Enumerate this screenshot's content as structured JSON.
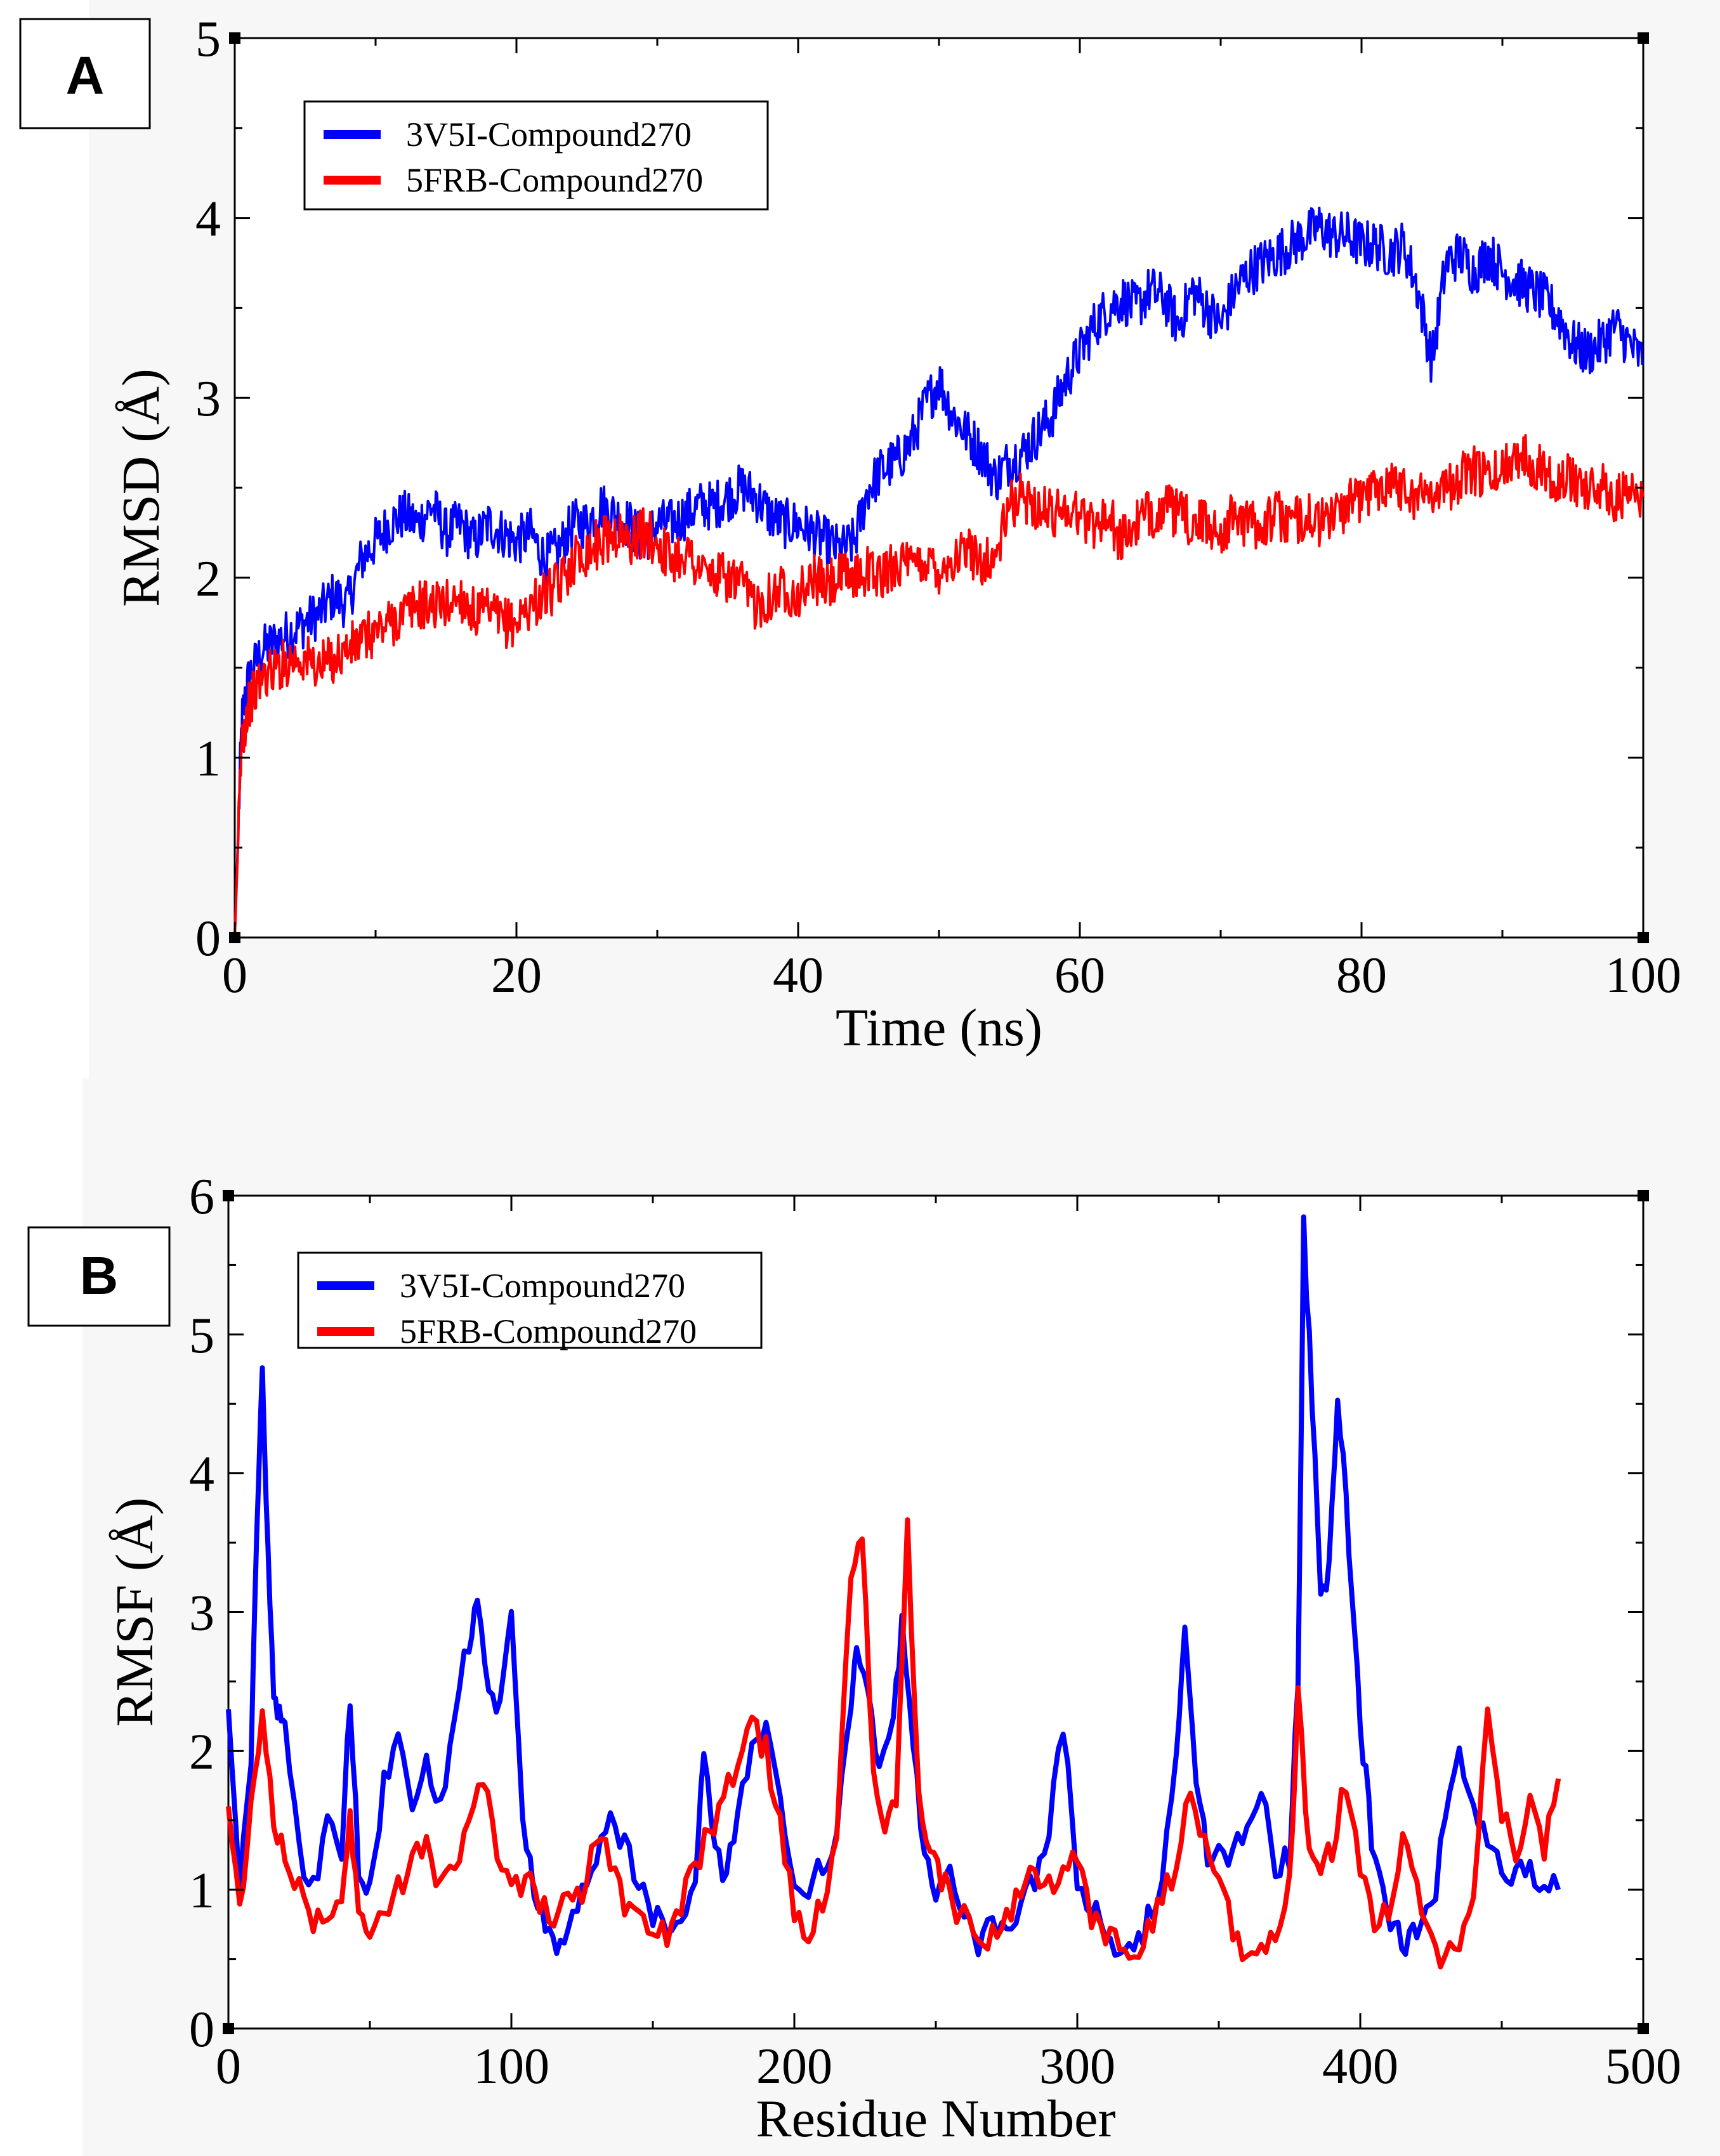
{
  "panels": [
    {
      "label": "A",
      "xlabel": "Time (ns)",
      "ylabel": "RMSD (Å)"
    },
    {
      "label": "B",
      "xlabel": "Residue Number",
      "ylabel": "RMSF (Å)"
    }
  ],
  "chart_data": [
    {
      "type": "line",
      "title": "",
      "xlabel": "Time (ns)",
      "ylabel": "RMSD (Å)",
      "xlim": [
        0,
        100
      ],
      "ylim": [
        0,
        5
      ],
      "xticks": [
        0,
        20,
        40,
        60,
        80,
        100
      ],
      "yticks": [
        0,
        1,
        2,
        3,
        4,
        5
      ],
      "legend_position": "top-left",
      "series": [
        {
          "name": "3V5I-Compound270",
          "color": "#0000ff",
          "x": [
            0,
            0.5,
            1,
            2,
            3,
            4,
            5,
            6,
            7,
            8,
            9,
            10,
            11,
            12,
            13,
            14,
            15,
            16,
            17,
            18,
            19,
            20,
            21,
            22,
            23,
            24,
            25,
            26,
            27,
            28,
            29,
            30,
            31,
            32,
            33,
            34,
            35,
            36,
            37,
            38,
            39,
            40,
            41,
            42,
            43,
            44,
            45,
            46,
            47,
            48,
            49,
            50,
            51,
            52,
            53,
            54,
            55,
            56,
            57,
            58,
            59,
            60,
            61,
            62,
            63,
            64,
            65,
            66,
            67,
            68,
            69,
            70,
            71,
            72,
            73,
            74,
            75,
            76,
            77,
            78,
            79,
            80,
            81,
            82,
            83,
            84,
            85,
            86,
            87,
            88,
            89,
            90,
            91,
            92,
            93,
            94,
            95,
            96,
            97,
            98,
            99,
            100
          ],
          "values": [
            0,
            1.2,
            1.45,
            1.6,
            1.65,
            1.7,
            1.75,
            1.8,
            1.9,
            1.85,
            2.1,
            2.2,
            2.3,
            2.35,
            2.3,
            2.4,
            2.25,
            2.3,
            2.2,
            2.3,
            2.25,
            2.2,
            2.25,
            2.1,
            2.15,
            2.3,
            2.3,
            2.4,
            2.35,
            2.3,
            2.2,
            2.3,
            2.3,
            2.35,
            2.4,
            2.4,
            2.45,
            2.5,
            2.45,
            2.35,
            2.3,
            2.3,
            2.25,
            2.2,
            2.15,
            2.2,
            2.5,
            2.6,
            2.65,
            2.75,
            2.95,
            3.1,
            2.9,
            2.8,
            2.7,
            2.55,
            2.65,
            2.7,
            2.8,
            2.9,
            3.1,
            3.25,
            3.4,
            3.5,
            3.55,
            3.5,
            3.6,
            3.55,
            3.4,
            3.6,
            3.5,
            3.4,
            3.6,
            3.7,
            3.75,
            3.8,
            3.85,
            3.9,
            3.95,
            3.9,
            3.9,
            3.85,
            3.85,
            3.8,
            3.85,
            3.6,
            3.2,
            3.75,
            3.8,
            3.7,
            3.8,
            3.7,
            3.65,
            3.6,
            3.55,
            3.45,
            3.3,
            3.25,
            3.3,
            3.4,
            3.3,
            3.2
          ]
        },
        {
          "name": "5FRB-Compound270",
          "color": "#ff0000",
          "x": [
            0,
            0.5,
            1,
            2,
            3,
            4,
            5,
            6,
            7,
            8,
            9,
            10,
            11,
            12,
            13,
            14,
            15,
            16,
            17,
            18,
            19,
            20,
            21,
            22,
            23,
            24,
            25,
            26,
            27,
            28,
            29,
            30,
            31,
            32,
            33,
            34,
            35,
            36,
            37,
            38,
            39,
            40,
            41,
            42,
            43,
            44,
            45,
            46,
            47,
            48,
            49,
            50,
            51,
            52,
            53,
            54,
            55,
            56,
            57,
            58,
            59,
            60,
            61,
            62,
            63,
            64,
            65,
            66,
            67,
            68,
            69,
            70,
            71,
            72,
            73,
            74,
            75,
            76,
            77,
            78,
            79,
            80,
            81,
            82,
            83,
            84,
            85,
            86,
            87,
            88,
            89,
            90,
            91,
            92,
            93,
            94,
            95,
            96,
            97,
            98,
            99,
            100
          ],
          "values": [
            0,
            1.1,
            1.3,
            1.45,
            1.5,
            1.55,
            1.55,
            1.5,
            1.55,
            1.6,
            1.65,
            1.7,
            1.75,
            1.8,
            1.85,
            1.85,
            1.85,
            1.9,
            1.8,
            1.8,
            1.75,
            1.75,
            1.85,
            1.9,
            1.95,
            2.1,
            2.15,
            2.2,
            2.25,
            2.2,
            2.25,
            2.2,
            2.1,
            2.15,
            2.05,
            2.0,
            2.0,
            1.95,
            1.85,
            1.9,
            1.95,
            1.9,
            2.0,
            1.95,
            2.0,
            2.0,
            2.05,
            2.0,
            2.1,
            2.05,
            2.1,
            2.05,
            2.1,
            2.15,
            2.1,
            2.1,
            2.4,
            2.45,
            2.4,
            2.35,
            2.4,
            2.35,
            2.3,
            2.35,
            2.2,
            2.3,
            2.35,
            2.4,
            2.35,
            2.3,
            2.3,
            2.25,
            2.35,
            2.3,
            2.3,
            2.35,
            2.3,
            2.35,
            2.3,
            2.35,
            2.4,
            2.45,
            2.5,
            2.55,
            2.5,
            2.45,
            2.5,
            2.5,
            2.55,
            2.6,
            2.55,
            2.6,
            2.7,
            2.65,
            2.6,
            2.55,
            2.55,
            2.5,
            2.5,
            2.45,
            2.45,
            2.45
          ]
        }
      ]
    },
    {
      "type": "line",
      "title": "",
      "xlabel": "Residue Number",
      "ylabel": "RMSF (Å)",
      "xlim": [
        0,
        500
      ],
      "ylim": [
        0,
        6
      ],
      "xticks": [
        0,
        100,
        200,
        300,
        400,
        500
      ],
      "yticks": [
        0,
        1,
        2,
        3,
        4,
        5,
        6
      ],
      "legend_position": "top-left",
      "series": [
        {
          "name": "3V5I-Compound270",
          "color": "#0000ff",
          "x": [
            0,
            4,
            8,
            10,
            12,
            14,
            16,
            18,
            20,
            25,
            30,
            35,
            40,
            43,
            46,
            50,
            55,
            60,
            65,
            70,
            75,
            80,
            85,
            88,
            92,
            96,
            100,
            104,
            108,
            112,
            116,
            120,
            125,
            130,
            135,
            140,
            145,
            150,
            155,
            160,
            165,
            168,
            172,
            176,
            180,
            185,
            190,
            195,
            200,
            205,
            210,
            215,
            220,
            222,
            226,
            230,
            235,
            238,
            242,
            246,
            250,
            255,
            260,
            265,
            270,
            275,
            280,
            285,
            290,
            295,
            300,
            305,
            310,
            315,
            320,
            325,
            330,
            335,
            338,
            342,
            346,
            350,
            355,
            360,
            365,
            370,
            375,
            378,
            380,
            383,
            386,
            389,
            392,
            395,
            398,
            401,
            404,
            408,
            412,
            416,
            420,
            425,
            430,
            435,
            440,
            445,
            450,
            455,
            460,
            465,
            470
          ],
          "values": [
            2.3,
            1.0,
            2.0,
            3.5,
            4.7,
            3.5,
            2.4,
            2.3,
            2.2,
            1.3,
            1.0,
            1.5,
            1.3,
            2.4,
            1.2,
            1.0,
            1.8,
            2.1,
            1.5,
            1.9,
            1.6,
            2.3,
            2.8,
            3.1,
            2.5,
            2.3,
            3.0,
            1.5,
            1.0,
            0.7,
            0.5,
            0.8,
            1.0,
            1.2,
            1.5,
            1.3,
            1.1,
            0.8,
            0.7,
            0.8,
            1.1,
            2.0,
            1.3,
            1.1,
            1.6,
            2.0,
            2.1,
            1.6,
            1.1,
            1.0,
            1.2,
            1.4,
            2.3,
            2.8,
            2.4,
            1.8,
            2.2,
            2.9,
            2.0,
            1.2,
            1.0,
            1.1,
            0.8,
            0.6,
            0.8,
            0.7,
            0.9,
            1.1,
            1.4,
            2.2,
            1.1,
            0.9,
            0.7,
            0.6,
            0.5,
            0.8,
            1.1,
            2.0,
            2.9,
            1.8,
            1.2,
            1.4,
            1.2,
            1.5,
            1.8,
            1.2,
            1.2,
            2.5,
            5.8,
            4.5,
            3.2,
            3.3,
            4.6,
            3.8,
            2.8,
            2.0,
            1.4,
            1.0,
            0.7,
            0.6,
            0.7,
            0.8,
            1.5,
            2.0,
            1.6,
            1.4,
            1.2,
            1.1,
            1.1,
            1.0,
            1.0
          ]
        },
        {
          "name": "5FRB-Compound270",
          "color": "#ff0000",
          "x": [
            0,
            4,
            8,
            12,
            16,
            20,
            25,
            30,
            35,
            40,
            43,
            46,
            50,
            55,
            60,
            65,
            70,
            75,
            80,
            85,
            90,
            95,
            100,
            105,
            110,
            115,
            120,
            125,
            130,
            135,
            140,
            145,
            150,
            155,
            160,
            165,
            170,
            175,
            180,
            185,
            190,
            195,
            200,
            205,
            210,
            215,
            220,
            224,
            228,
            232,
            236,
            240,
            244,
            248,
            252,
            256,
            260,
            265,
            270,
            275,
            280,
            285,
            290,
            295,
            300,
            305,
            310,
            315,
            320,
            325,
            330,
            335,
            340,
            345,
            350,
            355,
            360,
            365,
            370,
            375,
            378,
            382,
            386,
            390,
            395,
            400,
            405,
            410,
            415,
            420,
            425,
            430,
            435,
            440,
            445,
            450,
            455,
            460,
            465,
            470
          ],
          "values": [
            1.6,
            0.8,
            1.6,
            2.2,
            1.5,
            1.3,
            1.0,
            0.8,
            0.7,
            0.9,
            1.5,
            0.9,
            0.7,
            0.8,
            1.0,
            1.2,
            1.4,
            1.0,
            1.2,
            1.5,
            1.8,
            1.3,
            1.0,
            1.1,
            0.9,
            0.8,
            0.9,
            1.0,
            1.4,
            1.2,
            0.9,
            0.8,
            0.6,
            0.7,
            0.9,
            1.2,
            1.4,
            1.7,
            1.9,
            2.2,
            2.0,
            1.5,
            0.8,
            0.7,
            0.9,
            1.4,
            3.2,
            3.6,
            1.8,
            1.4,
            1.6,
            3.6,
            1.6,
            1.2,
            1.1,
            0.9,
            0.8,
            0.6,
            0.7,
            0.8,
            1.0,
            1.1,
            1.0,
            1.1,
            1.2,
            0.8,
            0.7,
            0.6,
            0.5,
            0.7,
            0.9,
            1.2,
            1.7,
            1.3,
            1.1,
            0.7,
            0.5,
            0.6,
            0.7,
            1.0,
            2.4,
            1.2,
            1.1,
            1.3,
            1.8,
            1.2,
            0.8,
            0.8,
            1.3,
            1.1,
            0.6,
            0.5,
            0.6,
            0.9,
            2.4,
            1.6,
            1.3,
            1.6,
            1.3,
            1.8
          ]
        }
      ]
    }
  ]
}
